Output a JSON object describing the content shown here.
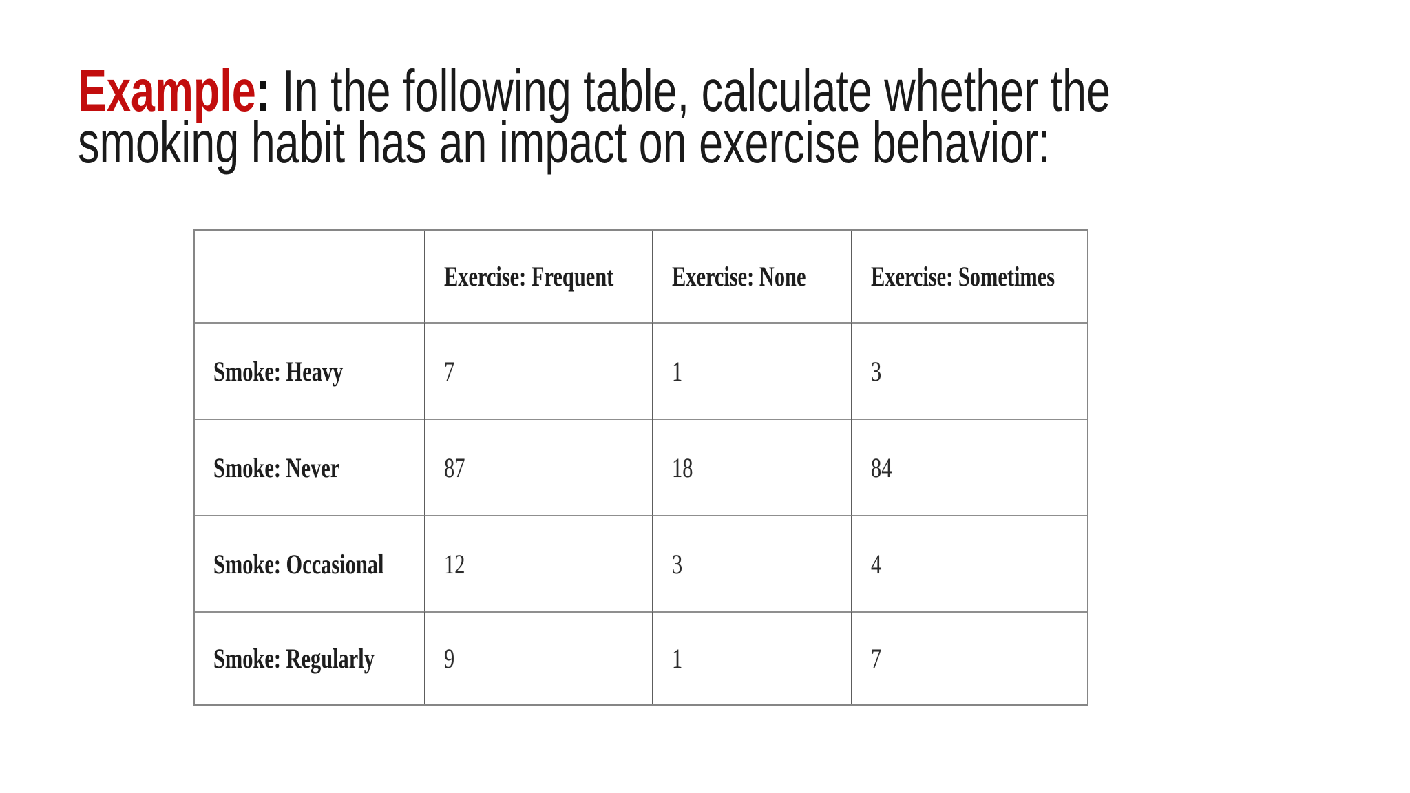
{
  "slide": {
    "title": {
      "keyword": "Example",
      "colon": ":",
      "line1_rest": " In the following table, calculate whether the",
      "line2": "smoking habit has an impact on exercise behavior:"
    },
    "accent_color": "#c20d0d",
    "text_color": "#1a1a1a",
    "background_color": "#ffffff"
  },
  "table": {
    "corner_label": "",
    "columns": [
      "Exercise: Frequent",
      "Exercise: None",
      "Exercise: Sometimes"
    ],
    "rows": [
      {
        "label": "Smoke: Heavy",
        "values": [
          "7",
          "1",
          "3"
        ]
      },
      {
        "label": "Smoke: Never",
        "values": [
          "87",
          "18",
          "84"
        ]
      },
      {
        "label": "Smoke: Occasional",
        "values": [
          "12",
          "3",
          "4"
        ]
      },
      {
        "label": "Smoke: Regularly",
        "values": [
          "9",
          "1",
          "7"
        ]
      }
    ]
  }
}
